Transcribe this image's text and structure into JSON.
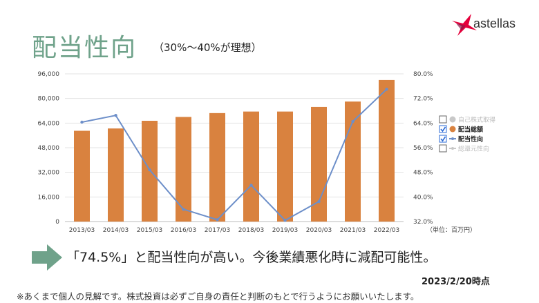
{
  "header": {
    "title": "配当性向",
    "subtitle": "（30%〜40%が理想）",
    "logo_text": "astellas"
  },
  "chart_data": {
    "type": "bar",
    "categories": [
      "2013/03",
      "2014/03",
      "2015/03",
      "2016/03",
      "2017/03",
      "2018/03",
      "2019/03",
      "2020/03",
      "2021/03",
      "2022/03"
    ],
    "series": [
      {
        "name": "配当総額",
        "type": "bar",
        "axis": "left",
        "color": "#d9823f",
        "values": [
          59000,
          60500,
          65500,
          68000,
          70500,
          71500,
          71500,
          74500,
          78000,
          92000
        ]
      },
      {
        "name": "配当性向",
        "type": "line",
        "axis": "right",
        "color": "#6d8fc9",
        "values": [
          64.3,
          66.5,
          48.8,
          36.0,
          32.6,
          43.8,
          32.4,
          38.5,
          64.5,
          75.0
        ]
      }
    ],
    "ylim_left": [
      0,
      96000
    ],
    "yticks_left": [
      "0",
      "16,000",
      "32,000",
      "48,000",
      "64,000",
      "80,000",
      "96,000"
    ],
    "ylim_right": [
      32,
      80
    ],
    "yticks_right": [
      "32.0%",
      "40.0%",
      "48.0%",
      "56.0%",
      "64.0%",
      "72.0%",
      "80.0%"
    ],
    "unit_label": "（単位：百万円）",
    "legend": [
      {
        "label": "自己株式取得",
        "checked": false,
        "active": false,
        "marker": "dot",
        "color": "#c8c8c8"
      },
      {
        "label": "配当総額",
        "checked": true,
        "active": true,
        "marker": "dot",
        "color": "#d9823f"
      },
      {
        "label": "配当性向",
        "checked": true,
        "active": true,
        "marker": "line",
        "color": "#6d8fc9"
      },
      {
        "label": "総還元性向",
        "checked": false,
        "active": false,
        "marker": "line",
        "color": "#c8c8c8"
      }
    ],
    "legend_position": "right",
    "grid": true
  },
  "footer": {
    "comment": "「74.5%」と配当性向が高い。今後業績悪化時に減配可能性。",
    "date": "2023/2/20時点",
    "disclaimer": "※あくまで個人の見解です。株式投資は必ずご自身の責任と判断のもとで行うようにお願いいたします。"
  },
  "colors": {
    "title": "#6fa28a",
    "arrow": "#6fa28a",
    "bar": "#d9823f",
    "line": "#6d8fc9"
  }
}
